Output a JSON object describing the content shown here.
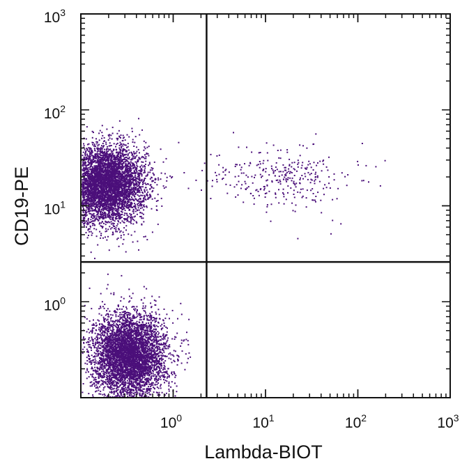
{
  "chart_data": {
    "type": "scatter",
    "title": "",
    "xlabel": "Lambda-BIOT",
    "ylabel": "CD19-PE",
    "x_scale": "log",
    "y_scale": "log",
    "xlim": [
      0.1,
      1000
    ],
    "ylim": [
      0.1,
      1000
    ],
    "x_ticks": [
      {
        "base": "10",
        "exp": "0",
        "value": 1
      },
      {
        "base": "10",
        "exp": "1",
        "value": 10
      },
      {
        "base": "10",
        "exp": "2",
        "value": 100
      },
      {
        "base": "10",
        "exp": "3",
        "value": 1000
      }
    ],
    "y_ticks": [
      {
        "base": "10",
        "exp": "0",
        "value": 1
      },
      {
        "base": "10",
        "exp": "1",
        "value": 10
      },
      {
        "base": "10",
        "exp": "2",
        "value": 100
      },
      {
        "base": "10",
        "exp": "3",
        "value": 1000
      }
    ],
    "quadrant_gates": {
      "x": 2.3,
      "y": 2.6
    },
    "grid": false,
    "legend": "none",
    "point_color": "#4b0f7a",
    "populations": [
      {
        "center": [
          0.18,
          17
        ],
        "spread_log10": [
          0.22,
          0.2
        ],
        "count": 5200
      },
      {
        "center": [
          0.33,
          0.28
        ],
        "spread_log10": [
          0.2,
          0.22
        ],
        "count": 4700
      },
      {
        "center": [
          15,
          20
        ],
        "spread_log10": [
          0.4,
          0.16
        ],
        "count": 320
      }
    ]
  }
}
